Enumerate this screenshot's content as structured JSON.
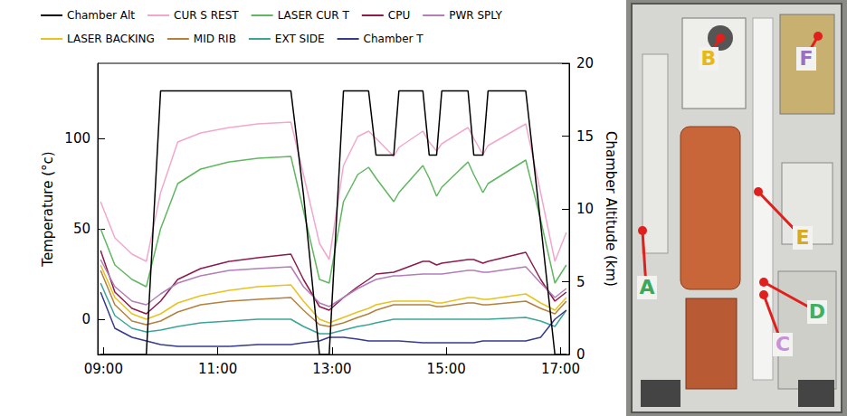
{
  "chart_data": {
    "type": "line",
    "legend": "top",
    "grid": false,
    "y_label": "Temperature (°c)",
    "y2_label": "Chamber Altitude (km)",
    "x": [
      8.95,
      9.2,
      9.5,
      9.75,
      10.0,
      10.3,
      10.7,
      11.2,
      11.7,
      12.28,
      12.5,
      12.78,
      12.95,
      13.2,
      13.45,
      13.64,
      13.77,
      14.08,
      14.17,
      14.59,
      14.7,
      14.83,
      14.92,
      15.38,
      15.48,
      15.64,
      15.73,
      16.39,
      16.65,
      16.9,
      17.1
    ],
    "xlim": [
      8.9,
      17.15
    ],
    "xticks": [
      {
        "value": 9,
        "label": "09:00"
      },
      {
        "value": 11,
        "label": "11:00"
      },
      {
        "value": 13,
        "label": "13:00"
      },
      {
        "value": 15,
        "label": "15:00"
      },
      {
        "value": 17,
        "label": "17:00"
      }
    ],
    "ylim": [
      -19.5,
      141.5
    ],
    "yticks": [
      0,
      50,
      100
    ],
    "y2lim": [
      0,
      20
    ],
    "y2ticks": [
      0,
      5,
      10,
      15,
      20
    ],
    "series": [
      {
        "name": "Chamber Alt",
        "color": "#000000",
        "axis": "y2",
        "values": [
          0,
          0,
          0,
          0,
          18.1,
          18.1,
          18.1,
          18.1,
          18.1,
          18.1,
          11,
          0,
          0,
          18.1,
          18.1,
          18.1,
          13.7,
          13.7,
          18.1,
          18.1,
          13.7,
          13.7,
          18.1,
          18.1,
          13.7,
          13.7,
          18.1,
          18.1,
          9,
          0,
          0
        ]
      },
      {
        "name": "CUR S REST",
        "color": "#f2a7cc",
        "values": [
          65,
          45,
          36,
          32,
          70,
          98,
          103,
          106,
          108,
          109,
          80,
          42,
          33,
          85,
          101,
          104,
          100,
          90,
          95,
          104,
          98,
          93,
          97,
          106,
          100,
          91,
          96,
          108,
          70,
          32,
          48
        ]
      },
      {
        "name": "LASER CUR T",
        "color": "#5fb760",
        "values": [
          50,
          30,
          22,
          18,
          50,
          75,
          83,
          87,
          89,
          90,
          60,
          22,
          20,
          65,
          80,
          84,
          78,
          65,
          70,
          85,
          78,
          68,
          73,
          87,
          80,
          70,
          75,
          88,
          55,
          20,
          30
        ]
      },
      {
        "name": "CPU",
        "color": "#8c1a4b",
        "values": [
          38,
          15,
          6,
          3,
          10,
          22,
          28,
          32,
          34,
          36,
          22,
          7,
          5,
          12,
          18,
          22,
          25,
          26,
          27,
          32,
          32,
          30,
          31,
          33,
          33,
          31,
          32,
          37,
          22,
          10,
          15
        ]
      },
      {
        "name": "PWR SPLY",
        "color": "#b27db9",
        "values": [
          33,
          18,
          10,
          8,
          14,
          20,
          24,
          27,
          28,
          29,
          18,
          9,
          7,
          12,
          17,
          20,
          22,
          24,
          24,
          25,
          25,
          25,
          25,
          27,
          27,
          26,
          26,
          29,
          20,
          12,
          17
        ]
      },
      {
        "name": "LASER BACKING",
        "color": "#e8c21e",
        "values": [
          30,
          12,
          3,
          0,
          3,
          9,
          13,
          16,
          18,
          19,
          10,
          0,
          -2,
          1,
          4,
          6,
          8,
          10,
          10,
          10,
          10,
          9,
          9,
          12,
          12,
          11,
          11,
          14,
          9,
          5,
          12
        ]
      },
      {
        "name": "MID RIB",
        "color": "#b5803d",
        "values": [
          27,
          8,
          -1,
          -3,
          -1,
          4,
          8,
          10,
          11,
          12,
          5,
          -3,
          -4,
          -2,
          1,
          3,
          5,
          8,
          8,
          8,
          8,
          7,
          7,
          9,
          9,
          8,
          8,
          10,
          6,
          3,
          10
        ]
      },
      {
        "name": "EXT SIDE",
        "color": "#3aa597",
        "values": [
          20,
          2,
          -5,
          -7,
          -6,
          -4,
          -2,
          -1,
          0,
          0,
          -4,
          -8,
          -8,
          -6,
          -4,
          -3,
          -2,
          0,
          0,
          0,
          0,
          0,
          0,
          0,
          0,
          0,
          0,
          1,
          -1,
          -4,
          5
        ]
      },
      {
        "name": "Chamber T",
        "color": "#353a8c",
        "values": [
          15,
          -5,
          -10,
          -12,
          -14,
          -15,
          -15,
          -15,
          -14,
          -14,
          -13,
          -12,
          -10,
          -10,
          -11,
          -12,
          -12,
          -12,
          -12,
          -13,
          -13,
          -13,
          -13,
          -13,
          -13,
          -12,
          -12,
          -12,
          -10,
          0,
          5
        ]
      }
    ]
  },
  "photo": {
    "labels": [
      "A",
      "B",
      "C",
      "D",
      "E",
      "F"
    ]
  }
}
